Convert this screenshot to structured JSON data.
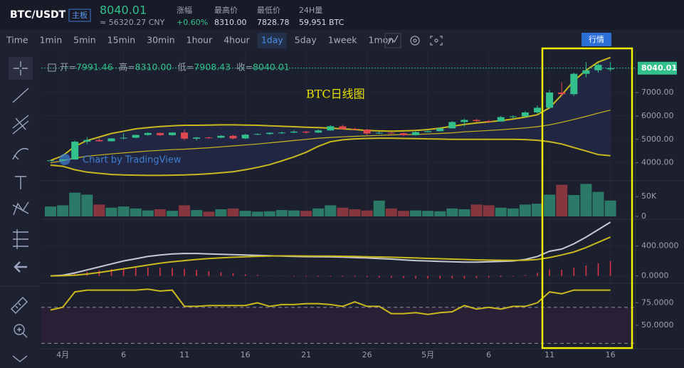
{
  "header": {
    "symbol": "BTC/USDT",
    "board": "主板",
    "price": "8040.01",
    "cny": "≈ 56320.27 CNY",
    "stats": [
      {
        "label": "涨幅",
        "value": "+0.60%"
      },
      {
        "label": "最高价",
        "value": "8310.00"
      },
      {
        "label": "最低价",
        "value": "7828.78"
      },
      {
        "label": "24H量",
        "value": "59,951 BTC"
      }
    ]
  },
  "toolbar": {
    "intervals": [
      "Time",
      "1min",
      "5min",
      "15min",
      "30min",
      "1hour",
      "4hour",
      "1day",
      "5day",
      "1week",
      "1mon"
    ],
    "active_index": 7,
    "logo_button": "行情"
  },
  "chart_data": [
    {
      "type": "candlestick",
      "title": "BTC日线图",
      "watermark": "Chart by TradingView",
      "ohlc_legend": [
        {
          "label": "开=",
          "value": "7991.46"
        },
        {
          "label": "高=",
          "value": "8310.00"
        },
        {
          "label": "低=",
          "value": "7908.43"
        },
        {
          "label": "收=",
          "value": "8040.01"
        }
      ],
      "categories": [
        null,
        "4月",
        null,
        null,
        null,
        null,
        "6",
        null,
        null,
        null,
        null,
        "11",
        null,
        null,
        null,
        null,
        "16",
        null,
        null,
        null,
        null,
        "21",
        null,
        null,
        null,
        null,
        "26",
        null,
        null,
        null,
        null,
        "5月",
        null,
        null,
        null,
        null,
        "6",
        null,
        null,
        null,
        null,
        "11",
        null,
        null,
        null,
        null,
        "16"
      ],
      "open": [
        4100,
        4100,
        4140,
        4900,
        4970,
        4920,
        5040,
        5070,
        5190,
        5270,
        5180,
        5290,
        5030,
        5080,
        5070,
        5150,
        5040,
        5200,
        5230,
        5280,
        5290,
        5330,
        5290,
        5380,
        5560,
        5440,
        5420,
        5250,
        5280,
        5260,
        5180,
        5310,
        5350,
        5470,
        5740,
        5830,
        5780,
        5760,
        5950,
        5980,
        6150,
        6350,
        7000,
        6930,
        7800,
        7950,
        7991.46
      ],
      "high": [
        4120,
        4150,
        4950,
        5100,
        5050,
        5050,
        5250,
        5200,
        5300,
        5290,
        5300,
        5420,
        5100,
        5120,
        5180,
        5190,
        5230,
        5250,
        5300,
        5330,
        5390,
        5360,
        5420,
        5600,
        5620,
        5500,
        5450,
        5330,
        5310,
        5290,
        5330,
        5380,
        5500,
        5780,
        5880,
        5870,
        5830,
        6000,
        6020,
        6200,
        6450,
        7100,
        7450,
        7850,
        8300,
        8250,
        8310
      ],
      "low": [
        4080,
        4070,
        4130,
        4800,
        4900,
        4900,
        5000,
        5050,
        5150,
        5150,
        5150,
        4950,
        4950,
        5030,
        5050,
        5000,
        5020,
        5180,
        5200,
        5230,
        5260,
        5230,
        5270,
        5370,
        5420,
        5380,
        5180,
        5230,
        5230,
        5150,
        5160,
        5290,
        5340,
        5460,
        5550,
        5730,
        5700,
        5750,
        5900,
        5950,
        6100,
        6330,
        6850,
        6850,
        7650,
        7850,
        7908.43
      ],
      "close": [
        4100,
        4140,
        4900,
        4970,
        4920,
        5040,
        5070,
        5190,
        5270,
        5180,
        5290,
        5030,
        5080,
        5070,
        5150,
        5040,
        5200,
        5230,
        5280,
        5290,
        5330,
        5290,
        5380,
        5560,
        5440,
        5420,
        5250,
        5280,
        5260,
        5180,
        5310,
        5350,
        5470,
        5740,
        5830,
        5780,
        5760,
        5950,
        5980,
        6150,
        6350,
        7000,
        6930,
        7800,
        7950,
        8180,
        8040.01
      ],
      "up_color": "#32c08c",
      "down_color": "#e0484f",
      "series": [
        {
          "color": "#c9b81e",
          "values": [
            4100,
            4300,
            4700,
            4950,
            5100,
            5250,
            5350,
            5450,
            5500,
            5550,
            5580,
            5600,
            5600,
            5610,
            5620,
            5620,
            5610,
            5600,
            5580,
            5560,
            5540,
            5520,
            5500,
            5480,
            5450,
            5420,
            5380,
            5360,
            5350,
            5360,
            5380,
            5420,
            5480,
            5560,
            5640,
            5700,
            5750,
            5800,
            5870,
            5950,
            6050,
            6350,
            6900,
            7500,
            7950,
            8300,
            8500
          ]
        },
        {
          "color": "#c9b81e",
          "values": [
            4000,
            4080,
            4200,
            4280,
            4330,
            4380,
            4420,
            4460,
            4500,
            4530,
            4560,
            4580,
            4610,
            4640,
            4680,
            4720,
            4760,
            4800,
            4850,
            4900,
            4950,
            5000,
            5050,
            5080,
            5110,
            5130,
            5150,
            5170,
            5190,
            5200,
            5210,
            5230,
            5250,
            5280,
            5320,
            5350,
            5380,
            5410,
            5450,
            5490,
            5540,
            5620,
            5730,
            5850,
            5980,
            6120,
            6250
          ]
        },
        {
          "color": "#c9b81e",
          "values": [
            3900,
            3850,
            3700,
            3600,
            3550,
            3500,
            3480,
            3470,
            3460,
            3460,
            3470,
            3480,
            3500,
            3530,
            3570,
            3620,
            3700,
            3800,
            3920,
            4080,
            4250,
            4450,
            4700,
            4900,
            4980,
            5020,
            5040,
            5050,
            5050,
            5040,
            5030,
            5020,
            5010,
            5000,
            5000,
            5000,
            5000,
            5000,
            5000,
            4990,
            4960,
            4900,
            4800,
            4650,
            4500,
            4350,
            4300
          ]
        }
      ],
      "last": {
        "value": 8040.01,
        "label": "8040.01"
      },
      "ylim": [
        3260,
        8520
      ],
      "yticks": [
        {
          "value": 4000,
          "label": "4000.00"
        },
        {
          "value": 5000,
          "label": "5000.00"
        },
        {
          "value": 6000,
          "label": "6000.00"
        },
        {
          "value": 7000,
          "label": "7000.00"
        }
      ],
      "grid": true
    },
    {
      "type": "bar",
      "values": [
        25000,
        28000,
        60000,
        55000,
        30000,
        22000,
        25000,
        20000,
        15000,
        18000,
        14000,
        28000,
        16000,
        12000,
        18000,
        20000,
        14000,
        12000,
        13000,
        16000,
        15000,
        14000,
        20000,
        28000,
        22000,
        18000,
        15000,
        40000,
        20000,
        14000,
        15000,
        14000,
        13000,
        20000,
        18000,
        30000,
        28000,
        22000,
        20000,
        30000,
        32000,
        55000,
        80000,
        54000,
        82000,
        62000,
        40000
      ],
      "up_color": "#2b7a67",
      "down_color": "#86363f",
      "ylim": [
        0,
        90000
      ],
      "yticks": [
        0,
        {
          "value": 50000,
          "label": "50K"
        }
      ],
      "grid": true
    },
    {
      "type": "macd",
      "series": [
        {
          "color": "#c8c8d2",
          "values": [
            0,
            10,
            40,
            80,
            120,
            160,
            200,
            230,
            260,
            280,
            295,
            300,
            300,
            295,
            290,
            285,
            280,
            275,
            270,
            265,
            260,
            258,
            256,
            255,
            252,
            245,
            240,
            232,
            225,
            215,
            205,
            200,
            195,
            190,
            185,
            185,
            190,
            195,
            200,
            220,
            260,
            330,
            360,
            430,
            520,
            620,
            720
          ]
        },
        {
          "color": "#c9b81e",
          "values": [
            0,
            2,
            10,
            25,
            45,
            70,
            95,
            120,
            145,
            170,
            190,
            205,
            220,
            232,
            242,
            250,
            257,
            262,
            266,
            268,
            268,
            267,
            266,
            265,
            263,
            260,
            257,
            254,
            250,
            245,
            240,
            235,
            230,
            225,
            220,
            215,
            212,
            210,
            208,
            210,
            220,
            245,
            280,
            320,
            380,
            450,
            520
          ]
        }
      ],
      "histogram": {
        "color": "#d8344a",
        "values": [
          0,
          8,
          30,
          55,
          75,
          90,
          105,
          110,
          115,
          110,
          105,
          95,
          80,
          63,
          48,
          35,
          23,
          13,
          4,
          -3,
          -8,
          -9,
          -10,
          -10,
          -11,
          -15,
          -17,
          -22,
          -25,
          -30,
          -35,
          -35,
          -35,
          -35,
          -35,
          -30,
          -22,
          -15,
          -8,
          10,
          40,
          85,
          80,
          110,
          140,
          170,
          200
        ]
      },
      "ylim": [
        -80,
        740
      ],
      "yticks": [
        {
          "value": 0,
          "label": "0.0000"
        },
        {
          "value": 400,
          "label": "400.0000"
        }
      ],
      "grid": true
    },
    {
      "type": "line",
      "series": [
        {
          "color": "#c9b81e",
          "values": [
            67,
            70,
            87,
            89,
            89,
            89,
            89,
            89,
            90,
            88,
            89,
            71,
            71,
            72,
            72,
            72,
            72,
            75,
            71,
            73,
            73,
            74,
            74,
            73,
            71,
            76,
            71,
            71,
            63,
            63,
            64,
            62,
            64,
            65,
            72,
            68,
            70,
            68,
            71,
            71,
            75,
            87,
            85,
            89,
            89,
            89,
            89
          ]
        }
      ],
      "hlines": [
        30,
        70
      ],
      "band_color": "#2a2035",
      "ylim": [
        24,
        95
      ],
      "yticks": [
        {
          "value": 50,
          "label": "50.0000"
        },
        {
          "value": 75,
          "label": "75.0000"
        }
      ],
      "grid": true
    }
  ]
}
